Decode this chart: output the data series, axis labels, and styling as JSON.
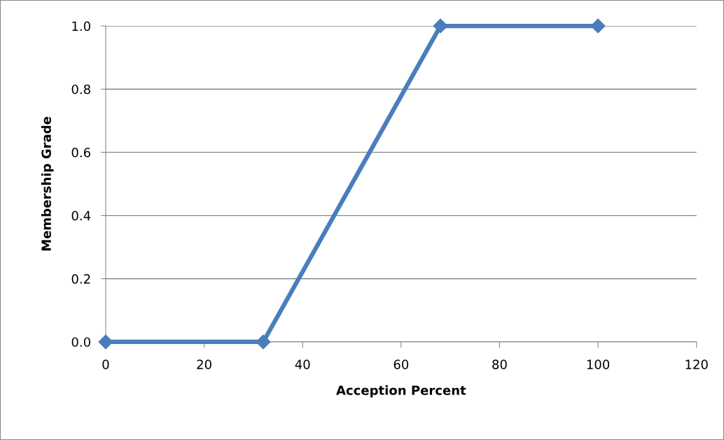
{
  "chart_data": {
    "type": "line",
    "xlabel": "Acception Percent",
    "ylabel": "Membership Grade",
    "x": [
      0,
      32,
      68,
      100
    ],
    "series": [
      {
        "color": "#4a7ebb",
        "values": [
          0,
          0,
          1,
          1
        ]
      }
    ],
    "xlim": [
      0,
      120
    ],
    "xticks": [
      0,
      20,
      40,
      60,
      80,
      100,
      120
    ],
    "ylim": [
      0,
      1
    ],
    "yticks": [
      {
        "value": 0,
        "label": "0.0"
      },
      {
        "value": 0.2,
        "label": "0.2"
      },
      {
        "value": 0.4,
        "label": "0.4"
      },
      {
        "value": 0.6,
        "label": "0.6"
      },
      {
        "value": 0.8,
        "label": "0.8"
      },
      {
        "value": 1,
        "label": "1.0"
      }
    ],
    "grid": "y",
    "marker": "diamond",
    "line_style": "solid",
    "legend": false
  }
}
